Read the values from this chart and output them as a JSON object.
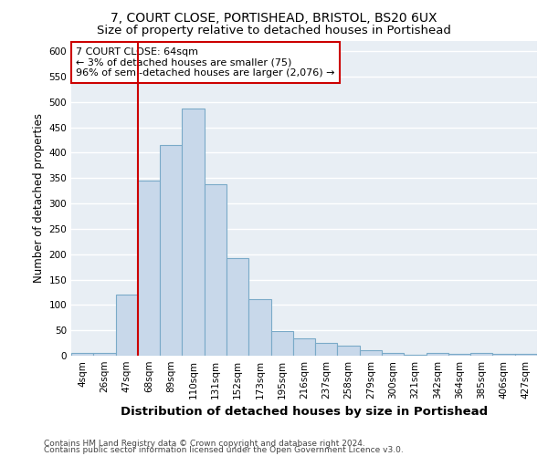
{
  "title": "7, COURT CLOSE, PORTISHEAD, BRISTOL, BS20 6UX",
  "subtitle": "Size of property relative to detached houses in Portishead",
  "xlabel": "Distribution of detached houses by size in Portishead",
  "ylabel": "Number of detached properties",
  "categories": [
    "4sqm",
    "26sqm",
    "47sqm",
    "68sqm",
    "89sqm",
    "110sqm",
    "131sqm",
    "152sqm",
    "173sqm",
    "195sqm",
    "216sqm",
    "237sqm",
    "258sqm",
    "279sqm",
    "300sqm",
    "321sqm",
    "342sqm",
    "364sqm",
    "385sqm",
    "406sqm",
    "427sqm"
  ],
  "values": [
    6,
    6,
    120,
    345,
    415,
    487,
    338,
    192,
    112,
    48,
    35,
    26,
    19,
    10,
    5,
    2,
    5,
    4,
    5,
    4,
    3
  ],
  "bar_color": "#c8d8ea",
  "bar_edge_color": "#7aaac8",
  "vline_position": 2.5,
  "vline_color": "#cc0000",
  "annotation_text": "7 COURT CLOSE: 64sqm\n← 3% of detached houses are smaller (75)\n96% of semi-detached houses are larger (2,076) →",
  "annotation_box_facecolor": "#ffffff",
  "annotation_box_edgecolor": "#cc0000",
  "ylim": [
    0,
    620
  ],
  "yticks": [
    0,
    50,
    100,
    150,
    200,
    250,
    300,
    350,
    400,
    450,
    500,
    550,
    600
  ],
  "fig_facecolor": "#ffffff",
  "ax_facecolor": "#e8eef4",
  "grid_color": "#ffffff",
  "footer_line1": "Contains HM Land Registry data © Crown copyright and database right 2024.",
  "footer_line2": "Contains public sector information licensed under the Open Government Licence v3.0.",
  "title_fontsize": 10,
  "subtitle_fontsize": 9.5,
  "xlabel_fontsize": 9.5,
  "ylabel_fontsize": 8.5,
  "tick_fontsize": 7.5,
  "annotation_fontsize": 8,
  "footer_fontsize": 6.5
}
